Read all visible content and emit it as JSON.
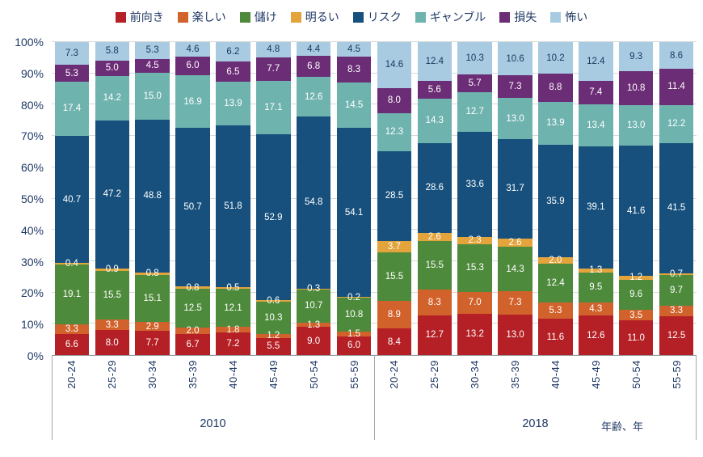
{
  "chart_data": {
    "type": "bar",
    "subtype": "stacked-100-percent-vertical",
    "title": "",
    "xlabel": "年齢、年",
    "ylabel": "",
    "ylim": [
      0,
      100
    ],
    "grid": true,
    "legend_position": "top",
    "y_ticks": [
      "0%",
      "10%",
      "20%",
      "30%",
      "40%",
      "50%",
      "60%",
      "70%",
      "80%",
      "90%",
      "100%"
    ],
    "groups": [
      "2010",
      "2018"
    ],
    "categories": [
      "20-24",
      "25-29",
      "30-34",
      "35-39",
      "40-44",
      "45-49",
      "50-54",
      "55-59"
    ],
    "series": [
      {
        "name": "前向き",
        "key": "positive",
        "color": "#b42025",
        "label_color": "#ffffff",
        "values": {
          "2010": [
            6.6,
            8.0,
            7.7,
            6.7,
            7.2,
            5.5,
            9.0,
            6.0
          ],
          "2018": [
            8.4,
            12.7,
            13.2,
            13.0,
            11.6,
            12.6,
            11.0,
            12.5
          ]
        }
      },
      {
        "name": "楽しい",
        "key": "fun",
        "color": "#d2622b",
        "label_color": "#ffffff",
        "values": {
          "2010": [
            3.3,
            3.3,
            2.9,
            2.0,
            1.8,
            1.2,
            1.3,
            1.5
          ],
          "2018": [
            8.9,
            8.3,
            7.0,
            7.3,
            5.3,
            4.3,
            3.5,
            3.3
          ]
        }
      },
      {
        "name": "儲け",
        "key": "profit",
        "color": "#4e8a3c",
        "label_color": "#ffffff",
        "values": {
          "2010": [
            19.1,
            15.5,
            15.1,
            12.5,
            12.1,
            10.3,
            10.7,
            10.8
          ],
          "2018": [
            15.5,
            15.5,
            15.3,
            14.3,
            12.4,
            9.5,
            9.6,
            9.7
          ]
        }
      },
      {
        "name": "明るい",
        "key": "bright",
        "color": "#e4a43c",
        "label_color": "#ffffff",
        "values": {
          "2010": [
            0.4,
            0.9,
            0.8,
            0.8,
            0.5,
            0.6,
            0.3,
            0.2
          ],
          "2018": [
            3.7,
            2.6,
            2.3,
            2.6,
            2.0,
            1.3,
            1.2,
            0.7
          ]
        }
      },
      {
        "name": "リスク",
        "key": "risk",
        "color": "#17507c",
        "label_color": "#ffffff",
        "values": {
          "2010": [
            40.7,
            47.2,
            48.8,
            50.7,
            51.8,
            52.9,
            54.8,
            54.1
          ],
          "2018": [
            28.5,
            28.6,
            33.6,
            31.7,
            35.9,
            39.1,
            41.6,
            41.5
          ]
        }
      },
      {
        "name": "ギャンブル",
        "key": "gamble",
        "color": "#6fb3af",
        "label_color": "#ffffff",
        "values": {
          "2010": [
            17.4,
            14.2,
            15.0,
            16.9,
            13.9,
            17.1,
            12.6,
            14.5
          ],
          "2018": [
            12.3,
            14.3,
            12.7,
            13.0,
            13.9,
            13.4,
            13.0,
            12.2
          ]
        }
      },
      {
        "name": "損失",
        "key": "loss",
        "color": "#6b2d75",
        "label_color": "#ffffff",
        "values": {
          "2010": [
            5.3,
            5.0,
            4.5,
            6.0,
            6.5,
            7.7,
            6.8,
            8.3
          ],
          "2018": [
            8.0,
            5.6,
            5.7,
            7.3,
            8.8,
            7.4,
            10.8,
            11.4
          ]
        }
      },
      {
        "name": "怖い",
        "key": "scary",
        "color": "#a9cbe2",
        "label_color": "#17375e",
        "values": {
          "2010": [
            7.3,
            5.8,
            5.3,
            4.6,
            6.2,
            4.8,
            4.4,
            4.5
          ],
          "2018": [
            14.6,
            12.4,
            10.3,
            10.6,
            10.2,
            12.4,
            9.3,
            8.6
          ]
        }
      }
    ]
  }
}
